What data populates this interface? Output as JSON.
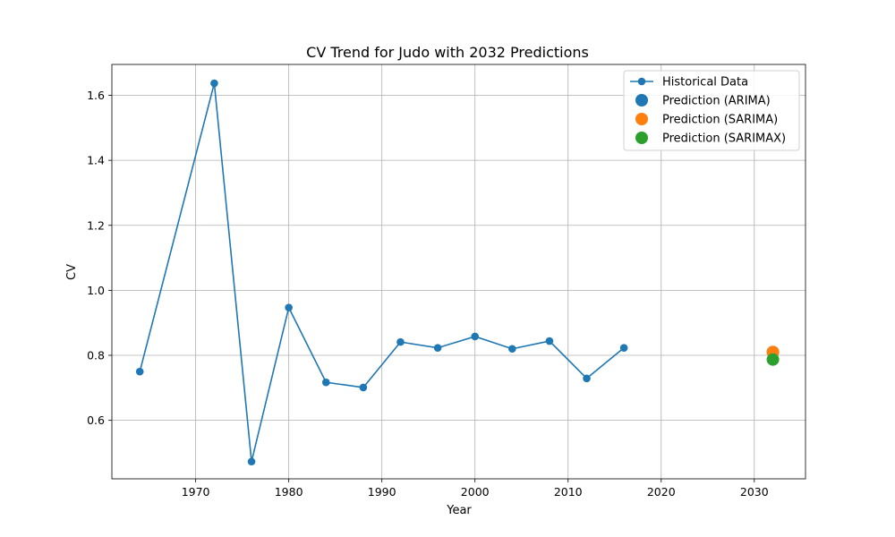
{
  "chart_data": {
    "type": "line",
    "title": "CV Trend for Judo with 2032 Predictions",
    "xlabel": "Year",
    "ylabel": "CV",
    "xlim": [
      1961,
      2035.5
    ],
    "ylim": [
      0.42,
      1.695
    ],
    "xticks": [
      1970,
      1980,
      1990,
      2000,
      2010,
      2020,
      2030
    ],
    "yticks": [
      0.6,
      0.8,
      1.0,
      1.2,
      1.4,
      1.6
    ],
    "ytick_labels": [
      "0.6",
      "0.8",
      "1.0",
      "1.2",
      "1.4",
      "1.6"
    ],
    "grid": true,
    "legend_position": "top-right",
    "series": [
      {
        "name": "Historical Data",
        "kind": "line-marker",
        "color": "#1f77b4",
        "x": [
          1964,
          1972,
          1976,
          1980,
          1984,
          1988,
          1992,
          1996,
          2000,
          2004,
          2008,
          2012,
          2016
        ],
        "y": [
          0.75,
          1.637,
          0.473,
          0.947,
          0.717,
          0.701,
          0.841,
          0.823,
          0.858,
          0.82,
          0.844,
          0.729,
          0.823
        ]
      },
      {
        "name": "Prediction (ARIMA)",
        "kind": "point",
        "color": "#1f77b4",
        "x": [
          2032
        ],
        "y": [
          0.81
        ]
      },
      {
        "name": "Prediction (SARIMA)",
        "kind": "point",
        "color": "#ff7f0e",
        "x": [
          2032
        ],
        "y": [
          0.81
        ]
      },
      {
        "name": "Prediction (SARIMAX)",
        "kind": "point",
        "color": "#2ca02c",
        "x": [
          2032
        ],
        "y": [
          0.787
        ]
      }
    ]
  }
}
